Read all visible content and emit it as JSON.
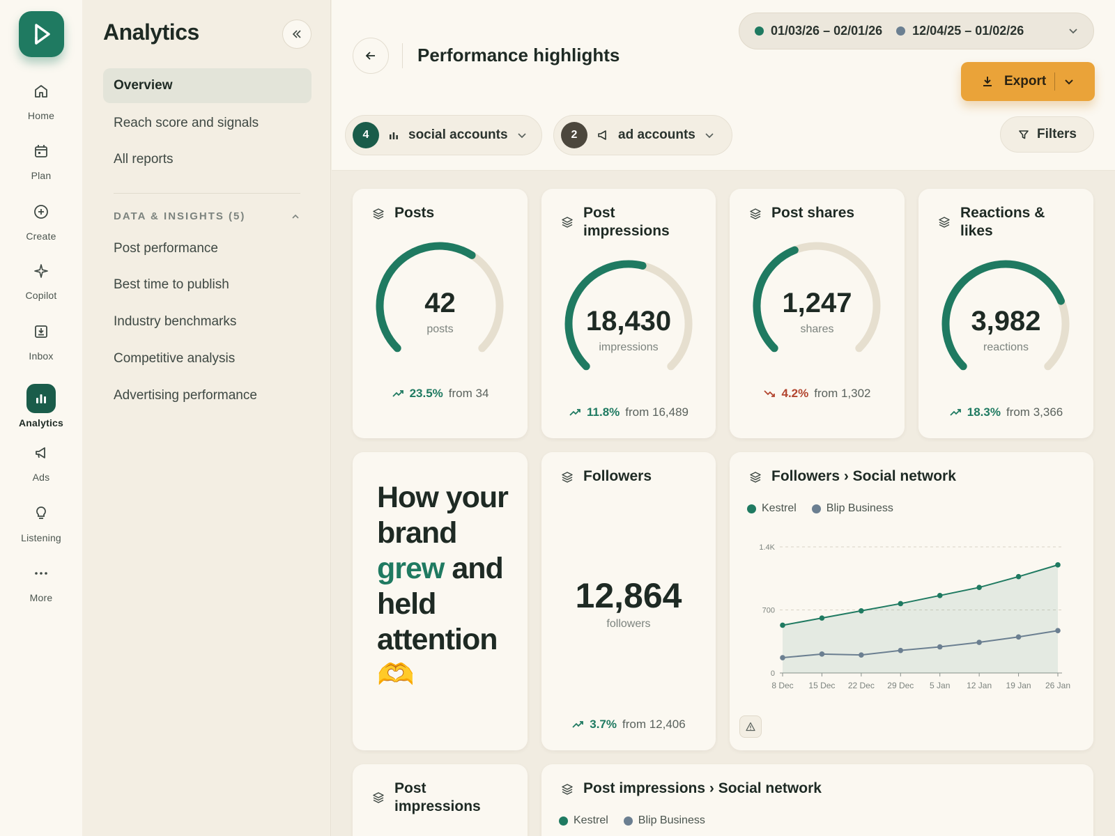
{
  "rail": {
    "items": [
      {
        "label": "Home",
        "icon": "home-icon"
      },
      {
        "label": "Plan",
        "icon": "calendar-icon"
      },
      {
        "label": "Create",
        "icon": "plus-circle-icon"
      },
      {
        "label": "Copilot",
        "icon": "sparkle-icon"
      },
      {
        "label": "Inbox",
        "icon": "inbox-icon"
      },
      {
        "label": "Analytics",
        "icon": "bar-chart-icon",
        "active": true
      },
      {
        "label": "Ads",
        "icon": "megaphone-icon"
      },
      {
        "label": "Listening",
        "icon": "lightbulb-icon"
      },
      {
        "label": "More",
        "icon": "more-dots-icon"
      }
    ]
  },
  "sidebar": {
    "title": "Analytics",
    "nav": [
      "Overview",
      "Reach score and signals",
      "All reports"
    ],
    "section_title": "DATA & INSIGHTS (5)",
    "section_items": [
      "Post performance",
      "Best time to publish",
      "Industry benchmarks",
      "Competitive analysis",
      "Advertising performance"
    ]
  },
  "header": {
    "title": "Performance highlights",
    "date_primary": "01/03/26 – 02/01/26",
    "date_compare": "12/04/25 – 01/02/26",
    "export_label": "Export",
    "social_count": "4",
    "social_label": "social accounts",
    "ad_count": "2",
    "ad_label": "ad accounts",
    "filters_label": "Filters"
  },
  "colors": {
    "primary": "#1f7a61",
    "compare": "#6b7f91",
    "accent": "#eaa339",
    "negative": "#b2452f"
  },
  "metrics": {
    "posts": {
      "title": "Posts",
      "value": "42",
      "unit": "posts",
      "change": "23.5%",
      "from": "from 34",
      "direction": "up",
      "fill": 0.62
    },
    "impressions": {
      "title": "Post impressions",
      "value": "18,430",
      "unit": "impressions",
      "change": "11.8%",
      "from": "from 16,489",
      "direction": "up",
      "fill": 0.55
    },
    "shares": {
      "title": "Post shares",
      "value": "1,247",
      "unit": "shares",
      "change": "4.2%",
      "from": "from 1,302",
      "direction": "down",
      "fill": 0.42
    },
    "reactions": {
      "title": "Reactions & likes",
      "value": "3,982",
      "unit": "reactions",
      "change": "18.3%",
      "from": "from 3,366",
      "direction": "up",
      "fill": 0.75
    }
  },
  "story": {
    "part1": "How your brand",
    "highlight": "grew",
    "part2": "and held attention",
    "emoji": "🫶"
  },
  "followers": {
    "title": "Followers",
    "value": "12,864",
    "unit": "followers",
    "change": "3.7%",
    "from": "from 12,406"
  },
  "followers_network": {
    "title": "Followers › Social network",
    "legend": [
      "Kestrel",
      "Blip Business"
    ]
  },
  "bottom": {
    "impressions_title": "Post impressions",
    "impressions_network_title": "Post impressions › Social network",
    "legend": [
      "Kestrel",
      "Blip Business"
    ]
  },
  "chart_data": {
    "type": "area",
    "title": "Followers › Social network",
    "categories": [
      "8 Dec",
      "15 Dec",
      "22 Dec",
      "29 Dec",
      "5 Jan",
      "12 Jan",
      "19 Jan",
      "26 Jan"
    ],
    "y_ticks": [
      "0",
      "700",
      "1.4K"
    ],
    "ylim": [
      0,
      1400
    ],
    "grid": "horizontal dashed",
    "legend_position": "top-left",
    "series": [
      {
        "name": "Kestrel",
        "values": [
          530,
          610,
          690,
          770,
          860,
          950,
          1070,
          1200
        ],
        "color": "#1f7a61"
      },
      {
        "name": "Blip Business",
        "values": [
          170,
          210,
          200,
          250,
          290,
          340,
          400,
          470
        ],
        "color": "#6b7f91"
      }
    ]
  }
}
